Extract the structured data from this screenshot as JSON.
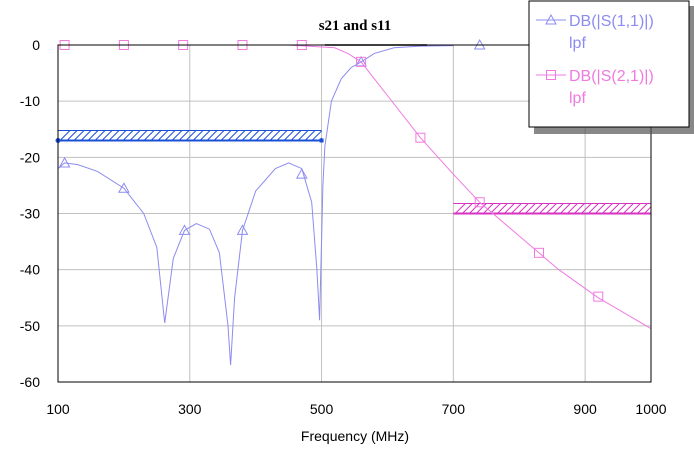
{
  "chart_data": {
    "type": "line",
    "title": "s21 and s11",
    "xlabel": "Frequency (MHz)",
    "ylabel": "",
    "xlim": [
      100,
      1000
    ],
    "ylim": [
      -60,
      0
    ],
    "xticks": [
      100,
      300,
      500,
      700,
      900,
      1000
    ],
    "yticks": [
      0,
      -10,
      -20,
      -30,
      -40,
      -50,
      -60
    ],
    "grid": true,
    "legend_position": "top-right",
    "series": [
      {
        "name": "DB(|S(1,1)|)",
        "sub": "lpf",
        "color": "#8c8cf0",
        "marker": "triangle",
        "x": [
          100,
          110,
          130,
          160,
          200,
          230,
          250,
          262,
          275,
          292,
          310,
          330,
          345,
          358,
          362,
          368,
          380,
          400,
          430,
          450,
          470,
          485,
          493,
          497,
          502,
          505,
          515,
          530,
          545,
          560,
          580,
          610,
          650,
          700
        ],
        "y": [
          -22,
          -21,
          -21.3,
          -22.5,
          -25.5,
          -30,
          -36,
          -49.5,
          -38,
          -33,
          -31.8,
          -32.8,
          -37,
          -50,
          -57,
          -45,
          -33,
          -26,
          -22,
          -21,
          -22,
          -28,
          -40,
          -49,
          -25,
          -18,
          -10,
          -6,
          -4,
          -3,
          -1.5,
          -0.5,
          -0.2,
          -0.1
        ],
        "markers_x": [
          110,
          200,
          292,
          380,
          470,
          560,
          740
        ],
        "markers_y": [
          -21,
          -25.5,
          -33,
          -33,
          -23,
          -3,
          0
        ]
      },
      {
        "name": "DB(|S(2,1)|)",
        "sub": "lpf",
        "color": "#f07ae0",
        "marker": "square",
        "x": [
          100,
          300,
          450,
          520,
          540,
          560,
          600,
          650,
          700,
          740,
          800,
          860,
          920,
          1000
        ],
        "y": [
          0,
          0,
          0,
          -0.5,
          -1.5,
          -3,
          -9,
          -16.5,
          -23,
          -28,
          -34,
          -40,
          -45,
          -50.5
        ],
        "markers_x": [
          110,
          200,
          290,
          380,
          470,
          560,
          650,
          740,
          830,
          920
        ],
        "markers_y": [
          0,
          0,
          0,
          0,
          0,
          -3,
          -16.5,
          -28,
          -37,
          -44.8
        ]
      }
    ],
    "specs": [
      {
        "x_start": 100,
        "x_end": 500,
        "y": -17,
        "color": "#1a4fd6",
        "endpoint_markers": true
      },
      {
        "x_start": 700,
        "x_end": 1000,
        "y": -30,
        "color": "#d633c2",
        "endpoint_markers": false
      }
    ],
    "black_segment": {
      "x_start": 505,
      "x_end": 660,
      "y": 0
    }
  }
}
